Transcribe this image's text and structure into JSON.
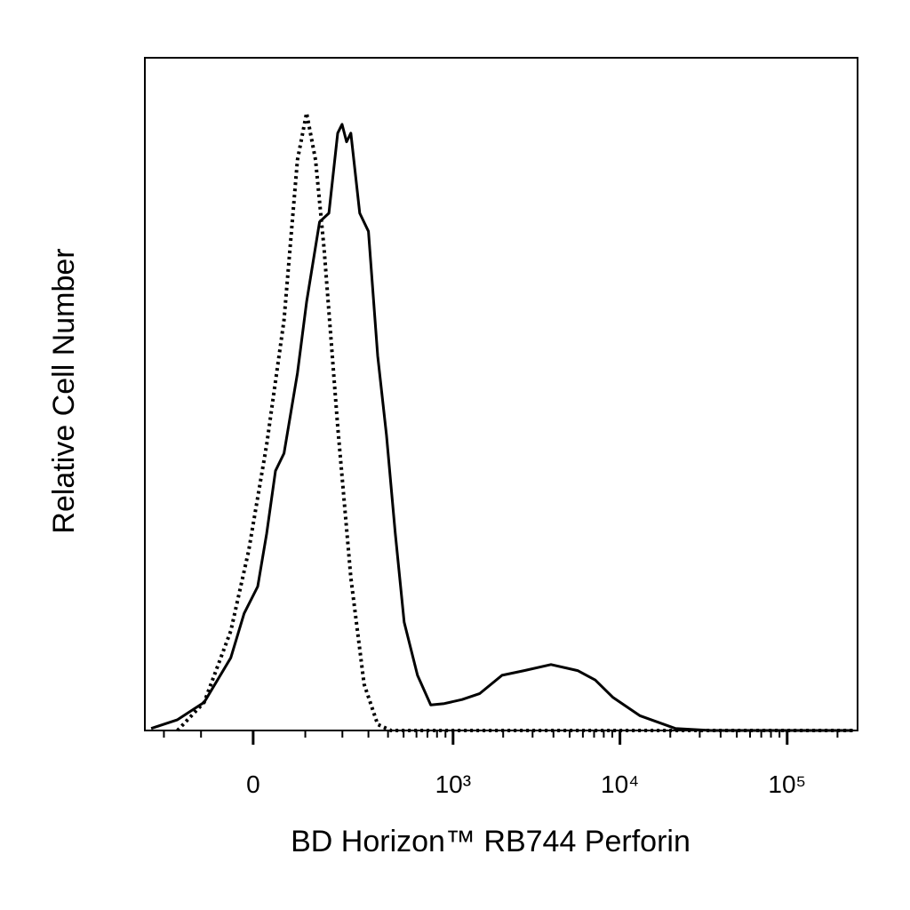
{
  "chart_data": {
    "type": "line",
    "xlabel": "BD Horizon™ RB744 Perforin",
    "ylabel": "Relative Cell Number",
    "xscale": "biexponential",
    "xlim": [
      -270,
      263700
    ],
    "ylim": [
      0,
      100
    ],
    "xticks": [
      0,
      {
        "value": 1000,
        "label": "10³"
      },
      {
        "value": 10000,
        "label": "10⁴"
      },
      {
        "value": 100000,
        "label": "10⁵"
      }
    ],
    "xminorticks": [
      -200,
      -100,
      100,
      200,
      300,
      400,
      500,
      600,
      700,
      800,
      900,
      2000,
      3000,
      4000,
      5000,
      6000,
      7000,
      8000,
      9000,
      20000,
      30000,
      40000,
      50000,
      60000,
      70000,
      80000,
      90000,
      200000
    ],
    "series": [
      {
        "color": "#000000",
        "dash": false,
        "x": [
          -245,
          -159,
          -93,
          -40,
          -16,
          8,
          24,
          40,
          56,
          83,
          103,
          134,
          159,
          185,
          199,
          214,
          229,
          263,
          300,
          344,
          391,
          444,
          504,
          609,
          733,
          886,
          1133,
          1449,
          1969,
          2675,
          3866,
          5581,
          7117,
          9101,
          13130,
          21440,
          35010,
          247600
        ],
        "values": [
          0.3,
          1.6,
          4.2,
          10.8,
          17.4,
          21.4,
          29.3,
          38.6,
          41.2,
          53.1,
          63.7,
          75.6,
          76.9,
          88.8,
          90.1,
          87.5,
          88.8,
          76.9,
          74.2,
          55.7,
          43.9,
          29.3,
          16.1,
          8.2,
          3.8,
          4.0,
          4.6,
          5.5,
          8.2,
          8.9,
          9.8,
          8.9,
          7.5,
          4.9,
          2.2,
          0.3,
          0,
          0
        ]
      },
      {
        "color": "#000000",
        "dash": true,
        "x": [
          -159,
          -93,
          -40,
          -8,
          24,
          56,
          83,
          103,
          124,
          146,
          185,
          229,
          281,
          344,
          417,
          247600
        ],
        "values": [
          0,
          4.2,
          14.8,
          26.7,
          42.5,
          61.0,
          84.8,
          91.8,
          84.8,
          71.6,
          45.2,
          22.7,
          6.9,
          0.9,
          0,
          0
        ]
      }
    ]
  }
}
